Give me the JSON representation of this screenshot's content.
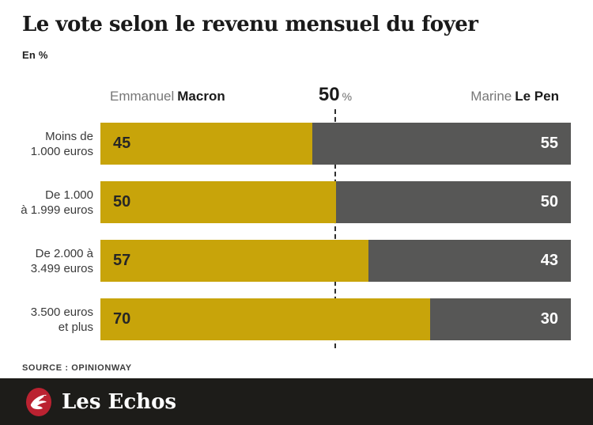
{
  "title": "Le vote selon le revenu mensuel du foyer",
  "unit_note": "En %",
  "header": {
    "left_regular": "Emmanuel",
    "left_bold": "Macron",
    "center_value": "50",
    "center_unit": "%",
    "right_regular": "Marine",
    "right_bold": "Le Pen"
  },
  "chart_data": {
    "type": "bar",
    "variant": "horizontal-stacked-100",
    "title": "Le vote selon le revenu mensuel du foyer",
    "unit": "En %",
    "categories": [
      [
        "Moins de",
        "1.000 euros"
      ],
      [
        "De 1.000",
        "à 1.999 euros"
      ],
      [
        "De 2.000 à",
        "3.499 euros"
      ],
      [
        "3.500 euros",
        "et plus"
      ]
    ],
    "series": [
      {
        "name": "Emmanuel Macron",
        "color": "#c8a40a",
        "values": [
          45,
          50,
          57,
          70
        ]
      },
      {
        "name": "Marine Le Pen",
        "color": "#575756",
        "values": [
          55,
          50,
          43,
          30
        ]
      }
    ],
    "xlim": [
      0,
      100
    ],
    "reference_line": {
      "value": 50,
      "label": "50 %"
    },
    "legend_position": "top",
    "grid": false
  },
  "source": "SOURCE : OPINIONWAY",
  "footer": {
    "brand": "Les Echos"
  },
  "colors": {
    "macron_yellow": "#c8a40a",
    "lepen_gray": "#575756",
    "title_text": "#1a1a1a",
    "muted_text": "#777777",
    "label_text": "#3a3a3a",
    "dash_line": "#2e2e2e",
    "footer_bg": "#1d1c19",
    "logo_red": "#bb2231",
    "value_dark": "#262626",
    "value_light": "#ffffff"
  }
}
